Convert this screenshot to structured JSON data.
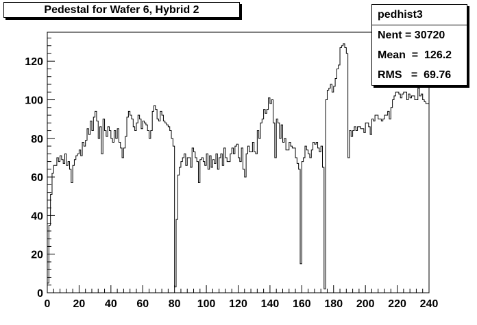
{
  "title": "Pedestal for Wafer 6, Hybrid 2",
  "stats": {
    "name": "pedhist3",
    "rows": [
      {
        "label": "Nent",
        "value": "= 30720"
      },
      {
        "label": "Mean",
        "value": "=  126.2"
      },
      {
        "label": "RMS",
        "value": "=  69.76"
      }
    ]
  },
  "chart_data": {
    "type": "histogram",
    "title": "Pedestal for Wafer 6, Hybrid 2",
    "xlabel": "",
    "ylabel": "",
    "xlim": [
      0,
      240
    ],
    "ylim": [
      0,
      135
    ],
    "xticks": [
      0,
      20,
      40,
      60,
      80,
      100,
      120,
      140,
      160,
      180,
      200,
      220,
      240
    ],
    "yticks": [
      0,
      20,
      40,
      60,
      80,
      100,
      120
    ],
    "bin_width": 1,
    "values": [
      5,
      35,
      51,
      62,
      66,
      66,
      70,
      68,
      71,
      69,
      67,
      72,
      66,
      68,
      64,
      57,
      66,
      69,
      71,
      72,
      74,
      71,
      78,
      76,
      79,
      85,
      82,
      89,
      84,
      91,
      94,
      89,
      80,
      86,
      72,
      90,
      84,
      81,
      86,
      84,
      80,
      78,
      84,
      80,
      85,
      78,
      75,
      70,
      75,
      81,
      91,
      94,
      92,
      90,
      86,
      84,
      88,
      92,
      90,
      85,
      89,
      88,
      87,
      84,
      80,
      84,
      94,
      97,
      95,
      90,
      89,
      94,
      92,
      89,
      88,
      87,
      86,
      84,
      80,
      76,
      3,
      38,
      61,
      65,
      68,
      70,
      72,
      66,
      70,
      70,
      65,
      75,
      73,
      70,
      68,
      57,
      69,
      70,
      68,
      66,
      72,
      64,
      71,
      65,
      69,
      67,
      72,
      64,
      70,
      72,
      66,
      75,
      70,
      68,
      68,
      72,
      75,
      72,
      76,
      77,
      70,
      68,
      75,
      64,
      60,
      72,
      76,
      73,
      73,
      78,
      73,
      72,
      84,
      80,
      88,
      90,
      95,
      93,
      95,
      101,
      98,
      100,
      88,
      70,
      90,
      88,
      80,
      87,
      78,
      80,
      74,
      74,
      78,
      76,
      75,
      75,
      70,
      67,
      64,
      15,
      68,
      70,
      76,
      74,
      72,
      70,
      74,
      78,
      77,
      78,
      75,
      73,
      76,
      65,
      2,
      100,
      105,
      106,
      108,
      104,
      107,
      111,
      116,
      118,
      127,
      128,
      129,
      127,
      124,
      70,
      84,
      81,
      84,
      86,
      84,
      86,
      86,
      85,
      85,
      83,
      88,
      88,
      86,
      82,
      90,
      89,
      92,
      92,
      90,
      90,
      89,
      90,
      92,
      92,
      94,
      90,
      96,
      100,
      102,
      104,
      104,
      103,
      101,
      103,
      104,
      104,
      100,
      103,
      101,
      102,
      102,
      100,
      100,
      106,
      102,
      103,
      100,
      99,
      98,
      98
    ]
  }
}
